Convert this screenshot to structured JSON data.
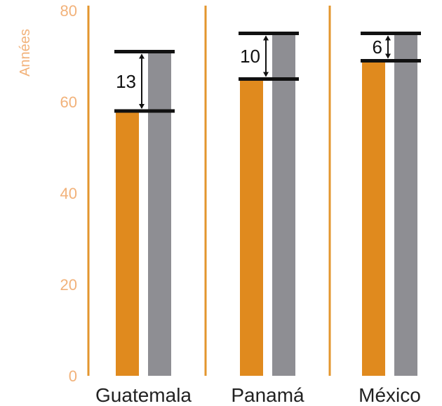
{
  "chart_data": {
    "type": "bar",
    "ylabel": "Années",
    "ylim": [
      0,
      80
    ],
    "yticks": [
      "0",
      "20",
      "40",
      "60",
      "80"
    ],
    "categories": [
      "Guatemala",
      "Panamá",
      "México"
    ],
    "series": [
      {
        "values": [
          58,
          65,
          69
        ]
      },
      {
        "values": [
          71,
          75,
          75
        ]
      }
    ],
    "gap_labels": [
      "13",
      "10",
      "6"
    ],
    "colors": {
      "series1": "#e08a1e",
      "series2": "#8e8e93",
      "separator": "#e3962e",
      "axis_text": "#f2b27a",
      "marker": "#111111"
    },
    "grid": false,
    "legend": "none"
  }
}
